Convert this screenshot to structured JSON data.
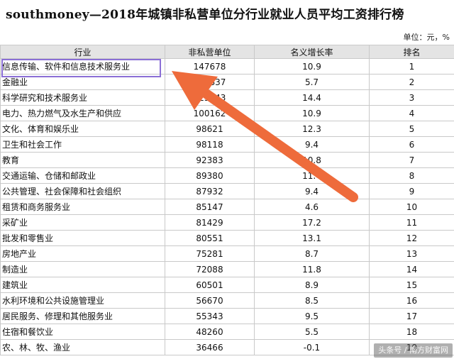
{
  "title": "southmoney—2018年城镇非私营单位分行业就业人员平均工资排行榜",
  "unit_note": "单位：元，%",
  "columns": {
    "industry": "行业",
    "avg_pay": "非私营单位",
    "growth": "名义增长率",
    "rank": "排名"
  },
  "rows": [
    {
      "industry": "信息传输、软件和信息技术服务业",
      "avg_pay": "147678",
      "growth": "10.9",
      "rank": "1"
    },
    {
      "industry": "金融业",
      "avg_pay": "129837",
      "growth": "5.7",
      "rank": "2"
    },
    {
      "industry": "科学研究和技术服务业",
      "avg_pay": "123343",
      "growth": "14.4",
      "rank": "3"
    },
    {
      "industry": "电力、热力燃气及水生产和供应",
      "avg_pay": "100162",
      "growth": "10.9",
      "rank": "4"
    },
    {
      "industry": "文化、体育和娱乐业",
      "avg_pay": "98621",
      "growth": "12.3",
      "rank": "5"
    },
    {
      "industry": "卫生和社会工作",
      "avg_pay": "98118",
      "growth": "9.4",
      "rank": "6"
    },
    {
      "industry": "教育",
      "avg_pay": "92383",
      "growth": "10.8",
      "rank": "7"
    },
    {
      "industry": "交通运输、仓储和邮政业",
      "avg_pay": "89380",
      "growth": "11.4",
      "rank": "8"
    },
    {
      "industry": "公共管理、社会保障和社会组织",
      "avg_pay": "87932",
      "growth": "9.4",
      "rank": "9"
    },
    {
      "industry": "租赁和商务服务业",
      "avg_pay": "85147",
      "growth": "4.6",
      "rank": "10"
    },
    {
      "industry": "采矿业",
      "avg_pay": "81429",
      "growth": "17.2",
      "rank": "11"
    },
    {
      "industry": "批发和零售业",
      "avg_pay": "80551",
      "growth": "13.1",
      "rank": "12"
    },
    {
      "industry": "房地产业",
      "avg_pay": "75281",
      "growth": "8.7",
      "rank": "13"
    },
    {
      "industry": "制造业",
      "avg_pay": "72088",
      "growth": "11.8",
      "rank": "14"
    },
    {
      "industry": "建筑业",
      "avg_pay": "60501",
      "growth": "8.9",
      "rank": "15"
    },
    {
      "industry": "水利环境和公共设施管理业",
      "avg_pay": "56670",
      "growth": "8.5",
      "rank": "16"
    },
    {
      "industry": "居民服务、修理和其他服务业",
      "avg_pay": "55343",
      "growth": "9.5",
      "rank": "17"
    },
    {
      "industry": "住宿和餐饮业",
      "avg_pay": "48260",
      "growth": "5.5",
      "rank": "18"
    },
    {
      "industry": "农、林、牧、渔业",
      "avg_pay": "36466",
      "growth": "-0.1",
      "rank": "19"
    }
  ],
  "annotation": {
    "highlight_color": "#8b6fd6",
    "arrow_color": "#ee6b3b"
  },
  "watermark": "头条号 / 南方财富网"
}
